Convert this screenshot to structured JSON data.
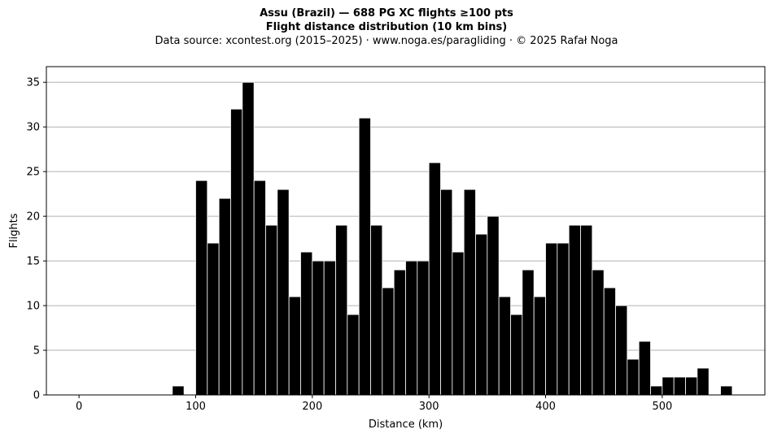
{
  "chart_data": {
    "type": "bar",
    "title": "Assu (Brazil)  —  688 PG XC flights ≥100 pts",
    "subtitle": "Flight distance distribution (10 km bins)",
    "source_note": "Data source: xcontest.org (2015–2025)  ·  www.noga.es/paragliding  ·  © 2025 Rafał Noga",
    "xlabel": "Distance (km)",
    "ylabel": "Flights",
    "bin_width": 10,
    "xlim": [
      -28,
      588
    ],
    "ylim": [
      0,
      36.75
    ],
    "xticks": [
      0,
      100,
      200,
      300,
      400,
      500
    ],
    "yticks": [
      0,
      5,
      10,
      15,
      20,
      25,
      30,
      35
    ],
    "grid": "horizontal",
    "bar_color": "#000000",
    "bar_edge_color": "#ffffff",
    "grid_color": "#b0b0b0",
    "x": [
      80,
      100,
      110,
      120,
      130,
      140,
      150,
      160,
      170,
      180,
      190,
      200,
      210,
      220,
      230,
      240,
      250,
      260,
      270,
      280,
      290,
      300,
      310,
      320,
      330,
      340,
      350,
      360,
      370,
      380,
      390,
      400,
      410,
      420,
      430,
      440,
      450,
      460,
      470,
      480,
      490,
      500,
      510,
      520,
      530,
      550
    ],
    "values": [
      1,
      24,
      17,
      22,
      32,
      35,
      24,
      19,
      23,
      11,
      16,
      15,
      15,
      19,
      9,
      31,
      19,
      12,
      14,
      15,
      15,
      26,
      23,
      16,
      23,
      18,
      20,
      11,
      9,
      14,
      11,
      17,
      17,
      19,
      19,
      14,
      12,
      10,
      4,
      6,
      1,
      2,
      2,
      2,
      3,
      1
    ]
  }
}
